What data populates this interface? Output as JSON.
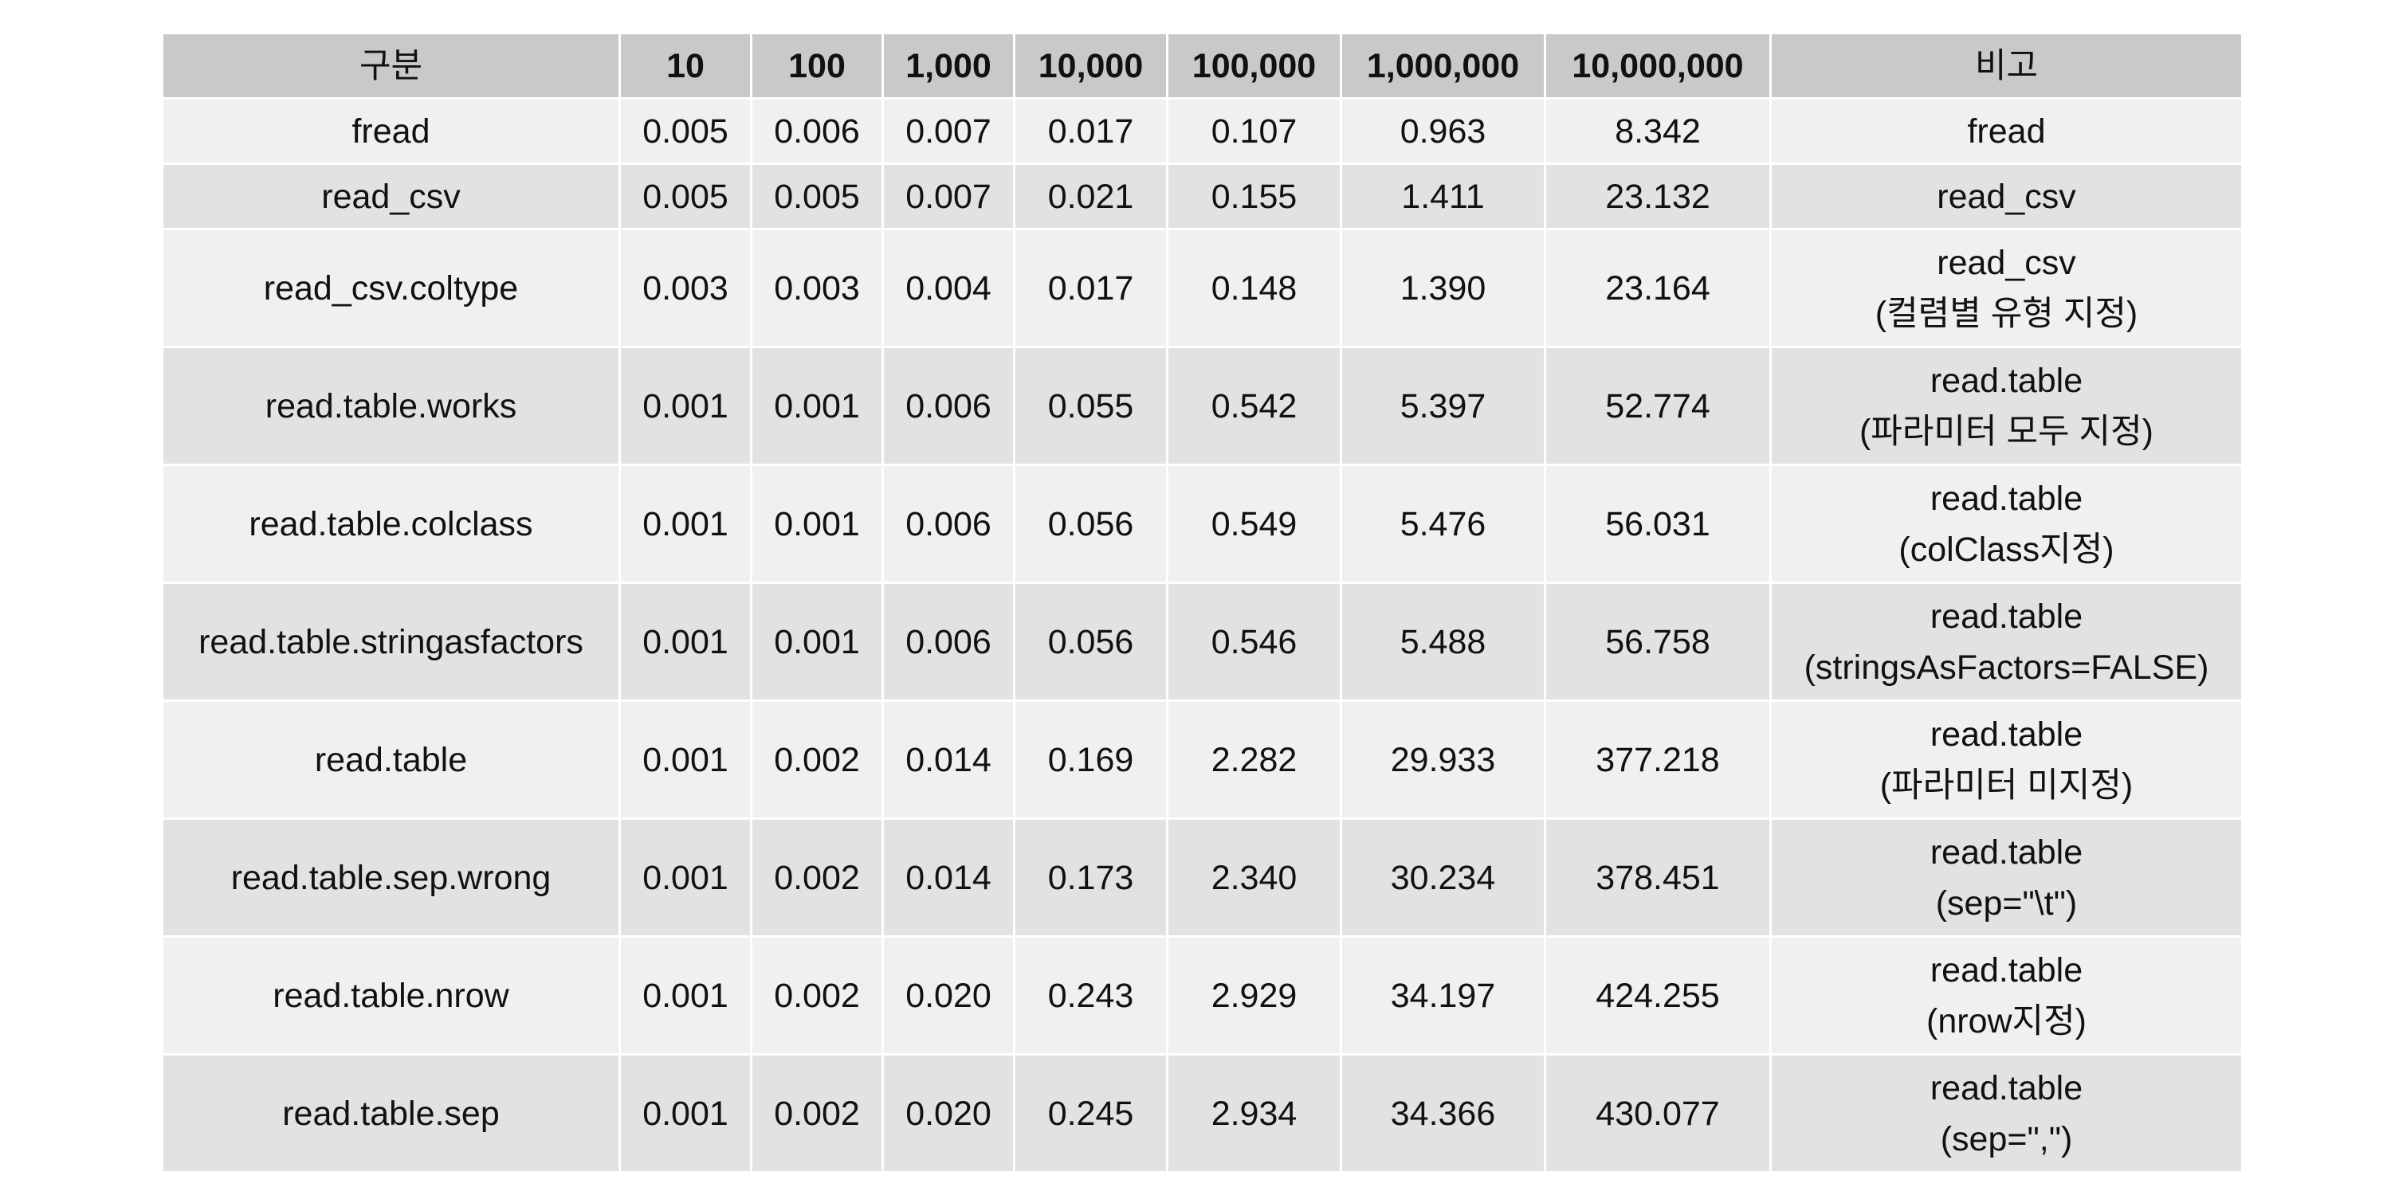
{
  "table": {
    "headers": [
      "구분",
      "10",
      "100",
      "1,000",
      "10,000",
      "100,000",
      "1,000,000",
      "10,000,000",
      "비고"
    ],
    "rows": [
      {
        "name": "fread",
        "values": [
          "0.005",
          "0.006",
          "0.007",
          "0.017",
          "0.107",
          "0.963",
          "8.342"
        ],
        "note": [
          "fread"
        ]
      },
      {
        "name": "read_csv",
        "values": [
          "0.005",
          "0.005",
          "0.007",
          "0.021",
          "0.155",
          "1.411",
          "23.132"
        ],
        "note": [
          "read_csv"
        ]
      },
      {
        "name": "read_csv.coltype",
        "values": [
          "0.003",
          "0.003",
          "0.004",
          "0.017",
          "0.148",
          "1.390",
          "23.164"
        ],
        "note": [
          "read_csv",
          "(컬렴별 유형 지정)"
        ]
      },
      {
        "name": "read.table.works",
        "values": [
          "0.001",
          "0.001",
          "0.006",
          "0.055",
          "0.542",
          "5.397",
          "52.774"
        ],
        "note": [
          "read.table",
          "(파라미터 모두 지정)"
        ]
      },
      {
        "name": "read.table.colclass",
        "values": [
          "0.001",
          "0.001",
          "0.006",
          "0.056",
          "0.549",
          "5.476",
          "56.031"
        ],
        "note": [
          "read.table",
          "(colClass지정)"
        ]
      },
      {
        "name": "read.table.stringasfactors",
        "values": [
          "0.001",
          "0.001",
          "0.006",
          "0.056",
          "0.546",
          "5.488",
          "56.758"
        ],
        "note": [
          "read.table",
          "(stringsAsFactors=FALSE)"
        ]
      },
      {
        "name": "read.table",
        "values": [
          "0.001",
          "0.002",
          "0.014",
          "0.169",
          "2.282",
          "29.933",
          "377.218"
        ],
        "note": [
          "read.table",
          "(파라미터 미지정)"
        ]
      },
      {
        "name": "read.table.sep.wrong",
        "values": [
          "0.001",
          "0.002",
          "0.014",
          "0.173",
          "2.340",
          "30.234",
          "378.451"
        ],
        "note": [
          "read.table",
          "(sep=\"\\t\")"
        ]
      },
      {
        "name": "read.table.nrow",
        "values": [
          "0.001",
          "0.002",
          "0.020",
          "0.243",
          "2.929",
          "34.197",
          "424.255"
        ],
        "note": [
          "read.table",
          "(nrow지정)"
        ]
      },
      {
        "name": "read.table.sep",
        "values": [
          "0.001",
          "0.002",
          "0.020",
          "0.245",
          "2.934",
          "34.366",
          "430.077"
        ],
        "note": [
          "read.table",
          "(sep=\",\")"
        ]
      }
    ]
  }
}
